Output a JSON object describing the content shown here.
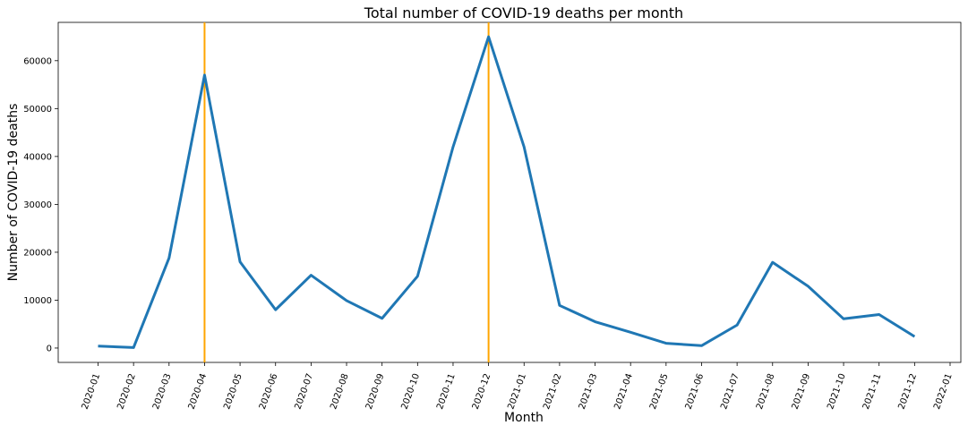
{
  "chart_data": {
    "type": "line",
    "title": "Total number of COVID-19 deaths per month",
    "xlabel": "Month",
    "ylabel": "Number of COVID-19 deaths",
    "ylim": [
      -3000,
      68000
    ],
    "y_ticks": [
      0,
      10000,
      20000,
      30000,
      40000,
      50000,
      60000
    ],
    "x_ticks": [
      "2020-01",
      "2020-02",
      "2020-03",
      "2020-04",
      "2020-05",
      "2020-06",
      "2020-07",
      "2020-08",
      "2020-09",
      "2020-10",
      "2020-11",
      "2020-12",
      "2021-01",
      "2021-02",
      "2021-03",
      "2021-04",
      "2021-05",
      "2021-06",
      "2021-07",
      "2021-08",
      "2021-09",
      "2021-10",
      "2021-11",
      "2021-12",
      "2022-01"
    ],
    "grid": false,
    "series": [
      {
        "color": "#1f77b4",
        "x": [
          "2020-01",
          "2020-02",
          "2020-03",
          "2020-04",
          "2020-05",
          "2020-06",
          "2020-07",
          "2020-08",
          "2020-09",
          "2020-10",
          "2020-11",
          "2020-12",
          "2021-01",
          "2021-02",
          "2021-03",
          "2021-04",
          "2021-05",
          "2021-06",
          "2021-07",
          "2021-08",
          "2021-09",
          "2021-10",
          "2021-11",
          "2021-12"
        ],
        "values": [
          400,
          100,
          18800,
          57000,
          18000,
          8000,
          15200,
          9900,
          6200,
          15000,
          42000,
          65000,
          42000,
          8900,
          5500,
          3300,
          1000,
          500,
          4800,
          17900,
          12900,
          6100,
          7000,
          2400
        ]
      }
    ],
    "vertical_lines": [
      {
        "x": "2020-04",
        "color": "#ffa500"
      },
      {
        "x": "2020-12",
        "color": "#ffa500"
      }
    ]
  }
}
